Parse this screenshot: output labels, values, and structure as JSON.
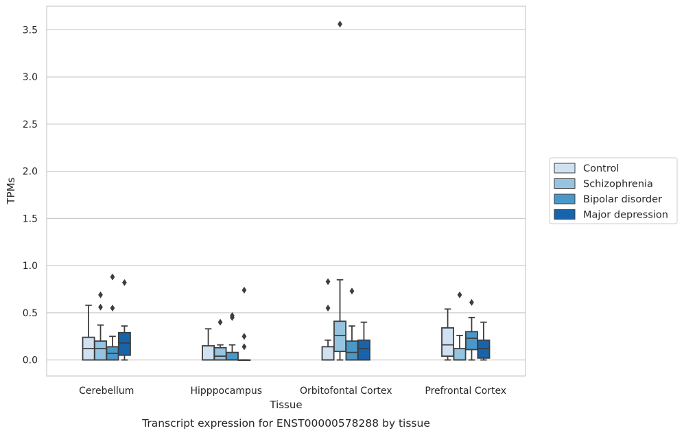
{
  "chart_data": {
    "type": "box",
    "xlabel": "Tissue",
    "ylabel": "TPMs",
    "caption": "Transcript expression for ENST00000578288 by tissue",
    "ylim": [
      -0.17,
      3.75
    ],
    "yticks": [
      0.0,
      0.5,
      1.0,
      1.5,
      2.0,
      2.5,
      3.0,
      3.5
    ],
    "ytick_labels": [
      "0.0",
      "0.5",
      "1.0",
      "1.5",
      "2.0",
      "2.5",
      "3.0",
      "3.5"
    ],
    "grid": "horizontal",
    "legend_position": "right",
    "categories": [
      "Cerebellum",
      "Hipppocampus",
      "Orbitofontal Cortex",
      "Prefrontal Cortex"
    ],
    "series": [
      {
        "name": "Control",
        "color": "#d0e1f2",
        "boxes": [
          {
            "q1": 0.0,
            "median": 0.12,
            "q3": 0.24,
            "whisker_low": 0.0,
            "whisker_high": 0.58,
            "outliers": []
          },
          {
            "q1": 0.0,
            "median": 0.0,
            "q3": 0.15,
            "whisker_low": 0.0,
            "whisker_high": 0.33,
            "outliers": []
          },
          {
            "q1": 0.0,
            "median": 0.0,
            "q3": 0.14,
            "whisker_low": 0.0,
            "whisker_high": 0.21,
            "outliers": [
              0.55,
              0.83
            ]
          },
          {
            "q1": 0.04,
            "median": 0.16,
            "q3": 0.34,
            "whisker_low": 0.0,
            "whisker_high": 0.54,
            "outliers": []
          }
        ]
      },
      {
        "name": "Schizophrenia",
        "color": "#94c4df",
        "boxes": [
          {
            "q1": 0.0,
            "median": 0.12,
            "q3": 0.2,
            "whisker_low": 0.0,
            "whisker_high": 0.37,
            "outliers": [
              0.56,
              0.69
            ]
          },
          {
            "q1": 0.0,
            "median": 0.04,
            "q3": 0.13,
            "whisker_low": 0.0,
            "whisker_high": 0.16,
            "outliers": [
              0.4
            ]
          },
          {
            "q1": 0.09,
            "median": 0.26,
            "q3": 0.41,
            "whisker_low": 0.0,
            "whisker_high": 0.85,
            "outliers": [
              3.56
            ]
          },
          {
            "q1": 0.0,
            "median": 0.0,
            "q3": 0.12,
            "whisker_low": 0.0,
            "whisker_high": 0.26,
            "outliers": [
              0.69
            ]
          }
        ]
      },
      {
        "name": "Bipolar disorder",
        "color": "#4a98c9",
        "boxes": [
          {
            "q1": 0.0,
            "median": 0.07,
            "q3": 0.14,
            "whisker_low": 0.0,
            "whisker_high": 0.25,
            "outliers": [
              0.55,
              0.88
            ]
          },
          {
            "q1": 0.0,
            "median": 0.0,
            "q3": 0.08,
            "whisker_low": 0.0,
            "whisker_high": 0.16,
            "outliers": [
              0.45,
              0.47
            ]
          },
          {
            "q1": 0.0,
            "median": 0.08,
            "q3": 0.2,
            "whisker_low": 0.0,
            "whisker_high": 0.36,
            "outliers": [
              0.73
            ]
          },
          {
            "q1": 0.11,
            "median": 0.23,
            "q3": 0.3,
            "whisker_low": 0.0,
            "whisker_high": 0.45,
            "outliers": [
              0.61
            ]
          }
        ]
      },
      {
        "name": "Major depression",
        "color": "#1764ab",
        "boxes": [
          {
            "q1": 0.05,
            "median": 0.18,
            "q3": 0.29,
            "whisker_low": 0.0,
            "whisker_high": 0.36,
            "outliers": [
              0.82
            ]
          },
          {
            "q1": 0.0,
            "median": 0.0,
            "q3": 0.0,
            "whisker_low": 0.0,
            "whisker_high": 0.0,
            "outliers": [
              0.14,
              0.25,
              0.74
            ]
          },
          {
            "q1": 0.0,
            "median": 0.12,
            "q3": 0.21,
            "whisker_low": 0.0,
            "whisker_high": 0.4,
            "outliers": []
          },
          {
            "q1": 0.02,
            "median": 0.12,
            "q3": 0.21,
            "whisker_low": 0.0,
            "whisker_high": 0.4,
            "outliers": []
          }
        ]
      }
    ]
  }
}
